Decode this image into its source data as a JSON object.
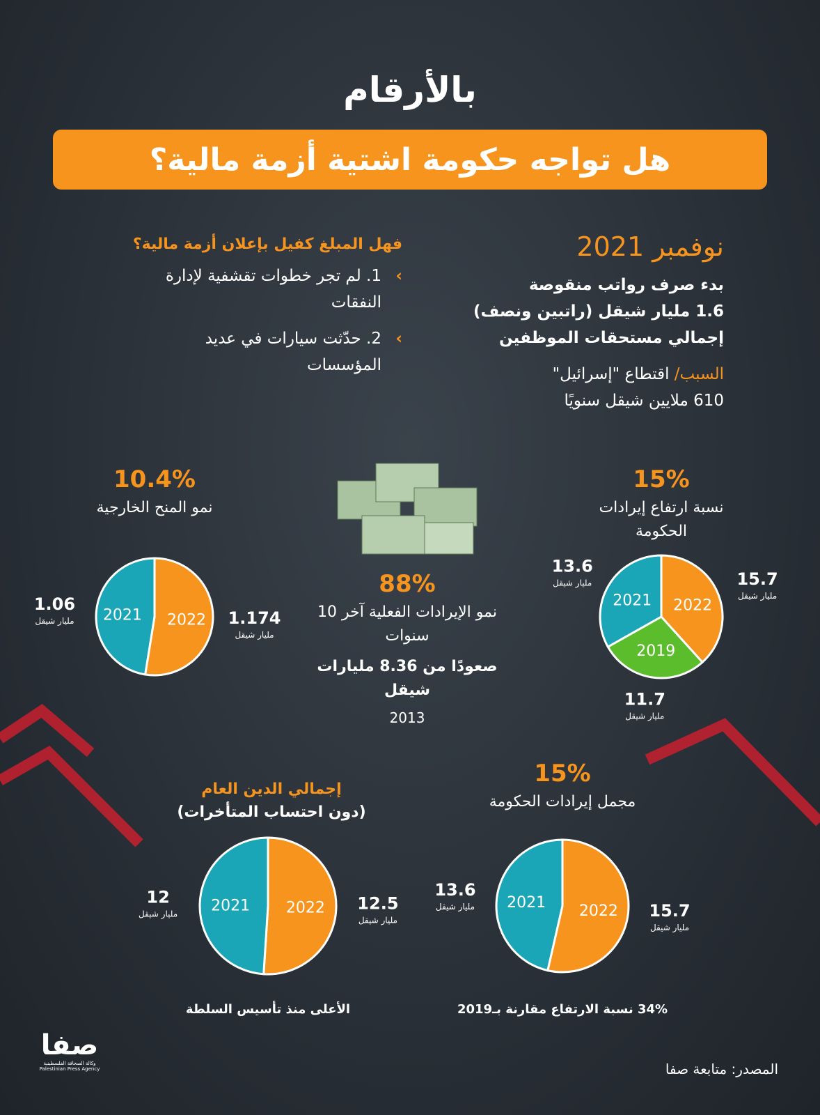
{
  "header": {
    "kicker": "بالأرقام",
    "title": "هل تواجه حكومة اشتية أزمة مالية؟"
  },
  "november": {
    "heading": "نوفمبر 2021",
    "lines": [
      "بدء صرف رواتب منقوصة",
      "1.6 مليار شيقل (راتبين ونصف)",
      "إجمالي مستحقات الموظفين"
    ],
    "reason_label": "السبب/",
    "reason": "اقتطاع \"إسرائيل\"",
    "reason_amount": "610 ملايين شيقل سنويًا"
  },
  "question": {
    "heading": "فهل المبلغ كفيل بإعلان أزمة مالية؟",
    "points": [
      "1. لم تجر خطوات تقشفية لإدارة النفقات",
      "2. حدّثت سيارات في عديد المؤسسات"
    ]
  },
  "center": {
    "headline": "88%",
    "lines": [
      "نمو الإيرادات الفعلية آخر 10 سنوات",
      "صعودًا من 8.36 مليارات شيقل"
    ],
    "year": "2013"
  },
  "charts": [
    {
      "type": "pie",
      "headline": "10.4%",
      "caption": "نمو المنح الخارجية",
      "slices": [
        {
          "label": "2022",
          "value": 1.174,
          "unit": "مليار شيقل",
          "color": "#f7941d"
        },
        {
          "label": "2021",
          "value": 1.06,
          "unit": "مليار شيقل",
          "color": "#1aa6b7"
        }
      ]
    },
    {
      "type": "pie",
      "headline": "15%",
      "caption": "نسبة ارتفاع إيرادات الحكومة",
      "slices": [
        {
          "label": "2022",
          "value": 15.7,
          "unit": "مليار شيقل",
          "color": "#f7941d"
        },
        {
          "label": "2019",
          "value": 11.7,
          "unit": "مليار شيقل",
          "color": "#5bbd2b"
        },
        {
          "label": "2021",
          "value": 13.6,
          "unit": "مليار شيقل",
          "color": "#1aa6b7"
        }
      ]
    },
    {
      "type": "pie",
      "headline": "إجمالي الدين العام",
      "caption": "(دون احتساب المتأخرات)",
      "footnote": "الأعلى منذ تأسيس السلطة",
      "slices": [
        {
          "label": "2022",
          "value": 12.5,
          "unit": "مليار شيقل",
          "color": "#f7941d"
        },
        {
          "label": "2021",
          "value": 12,
          "unit": "مليار شيقل",
          "color": "#1aa6b7"
        }
      ]
    },
    {
      "type": "pie",
      "headline": "15%",
      "caption": "مجمل إيرادات الحكومة",
      "footnote": "34% نسبة الارتفاع مقارنة بـ2019",
      "slices": [
        {
          "label": "2022",
          "value": 15.7,
          "unit": "مليار شيقل",
          "color": "#f7941d"
        },
        {
          "label": "2021",
          "value": 13.6,
          "unit": "مليار شيقل",
          "color": "#1aa6b7"
        }
      ]
    }
  ],
  "footer": {
    "source": "المصدر: متابعة صفا",
    "logo": "صفا",
    "agency_ar": "وكالة الصحافة الفلسطينية",
    "agency_en": "Palestinian Press Agency"
  }
}
